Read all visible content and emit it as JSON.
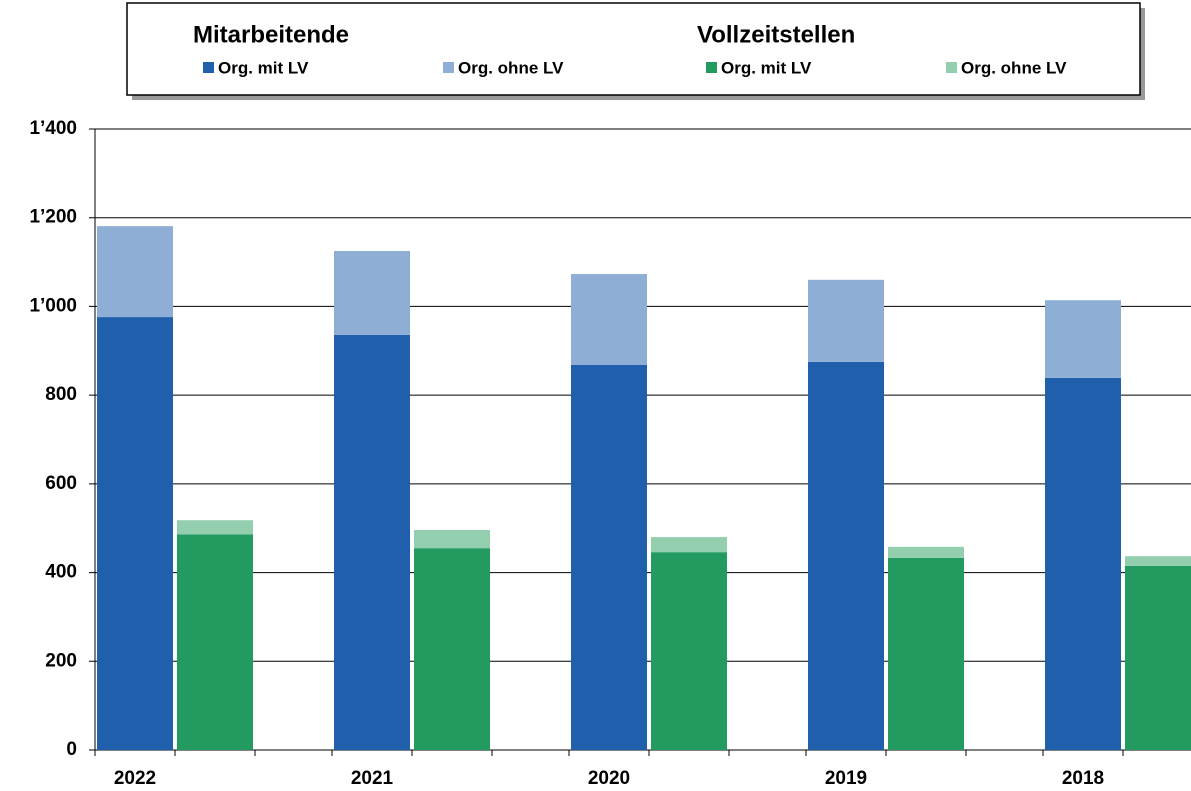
{
  "chart_data": {
    "type": "grouped_stacked_bar",
    "categories": [
      "2022",
      "2021",
      "2020",
      "2019",
      "2018"
    ],
    "groups": [
      {
        "name": "Mitarbeitende",
        "series": [
          {
            "name": "Org. mit LV",
            "color": "#1f5fab",
            "values": [
              976,
              936,
              868,
              875,
              839
            ]
          },
          {
            "name": "Org. ohne LV",
            "color": "#8eaed6",
            "values": [
              205,
              189,
              205,
              185,
              175
            ]
          }
        ]
      },
      {
        "name": "Vollzeitstellen",
        "series": [
          {
            "name": "Org. mit LV",
            "color": "#239a5f",
            "values": [
              486,
              455,
              446,
              433,
              415
            ]
          },
          {
            "name": "Org. ohne LV",
            "color": "#93cfae",
            "values": [
              32,
              41,
              34,
              25,
              22
            ]
          }
        ]
      }
    ],
    "ylim": [
      0,
      1400
    ],
    "yticks": [
      0,
      200,
      400,
      600,
      800,
      {
        "value": 1000,
        "label": "1’000"
      },
      {
        "value": 1200,
        "label": "1’200"
      },
      {
        "value": 1400,
        "label": "1’400"
      }
    ],
    "grid": true
  }
}
